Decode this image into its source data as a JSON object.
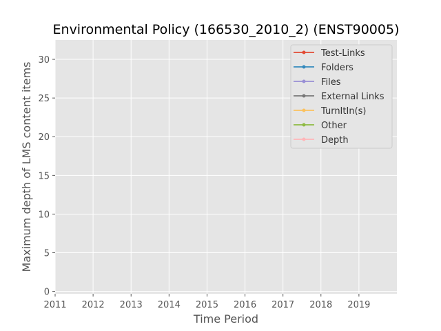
{
  "chart_data": {
    "type": "line",
    "title": "Environmental Policy (166530_2010_2) (ENST90005)",
    "xlabel": "Time Period",
    "ylabel": "Maximum depth of LMS content items",
    "xlim": [
      2011,
      2020
    ],
    "ylim": [
      -0.3,
      32.5
    ],
    "x_ticks": [
      "2011",
      "2012",
      "2013",
      "2014",
      "2015",
      "2016",
      "2017",
      "2018",
      "2019"
    ],
    "y_ticks": [
      0,
      5,
      10,
      15,
      20,
      25,
      30
    ],
    "grid": true,
    "legend_position": "top-right",
    "series": [
      {
        "name": "Test-Links",
        "color": "#E24A33",
        "x": [],
        "y": []
      },
      {
        "name": "Folders",
        "color": "#348ABD",
        "x": [],
        "y": []
      },
      {
        "name": "Files",
        "color": "#988ED5",
        "x": [],
        "y": []
      },
      {
        "name": "External Links",
        "color": "#777777",
        "x": [],
        "y": []
      },
      {
        "name": "TurnItIn(s)",
        "color": "#FBC15E",
        "x": [],
        "y": []
      },
      {
        "name": "Other",
        "color": "#8EBA42",
        "x": [],
        "y": []
      },
      {
        "name": "Depth",
        "color": "#FFB5B8",
        "x": [],
        "y": []
      }
    ]
  }
}
